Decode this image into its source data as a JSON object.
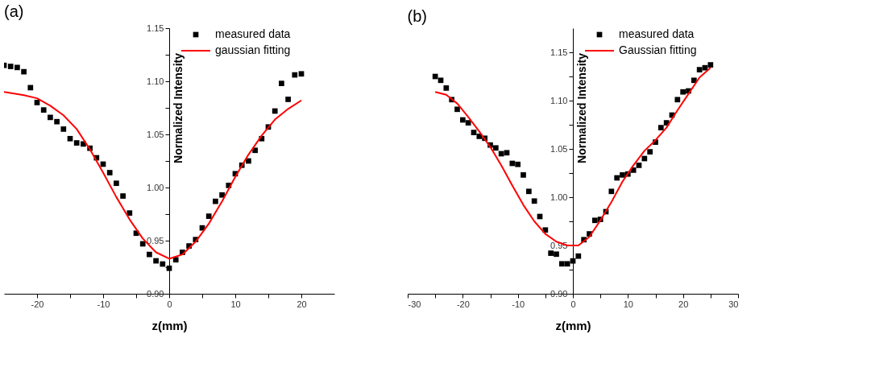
{
  "chart_data": [
    {
      "type": "scatter",
      "title": "(a)",
      "xlabel": "z(mm)",
      "ylabel": "Normalized Intensity",
      "xlim": [
        -25,
        25
      ],
      "ylim": [
        0.9,
        1.15
      ],
      "xticks": [
        -20,
        {
          "value": -15,
          "label": null
        },
        -10,
        {
          "value": -5,
          "label": null
        },
        0,
        {
          "value": 5,
          "label": null
        },
        10,
        {
          "value": 15,
          "label": null
        },
        20
      ],
      "yticks": [
        {
          "value": 0.9,
          "label": "0.90"
        },
        {
          "value": 0.925,
          "label": null
        },
        {
          "value": 0.95,
          "label": "0.95"
        },
        {
          "value": 0.975,
          "label": null
        },
        {
          "value": 1.0,
          "label": "1.00"
        },
        {
          "value": 1.025,
          "label": null
        },
        {
          "value": 1.05,
          "label": "1.05"
        },
        {
          "value": 1.075,
          "label": null
        },
        {
          "value": 1.1,
          "label": "1.10"
        },
        {
          "value": 1.125,
          "label": null
        },
        {
          "value": 1.15,
          "label": "1.15"
        }
      ],
      "grid": false,
      "legend": "top right",
      "series": [
        {
          "name": "measured data",
          "marker": "square",
          "color": "#000000",
          "x": [
            -25,
            -24,
            -23,
            -22,
            -21,
            -20,
            -19,
            -18,
            -17,
            -16,
            -15,
            -14,
            -13,
            -12,
            -11,
            -10,
            -9,
            -8,
            -7,
            -6,
            -5,
            -4,
            -3,
            -2,
            -1,
            0,
            1,
            2,
            3,
            4,
            5,
            6,
            7,
            8,
            9,
            10,
            11,
            12,
            13,
            14,
            15,
            16,
            17,
            18,
            19,
            20
          ],
          "values": [
            1.115,
            1.114,
            1.113,
            1.109,
            1.094,
            1.08,
            1.073,
            1.066,
            1.062,
            1.055,
            1.046,
            1.042,
            1.041,
            1.037,
            1.028,
            1.022,
            1.014,
            1.004,
            0.992,
            0.976,
            0.957,
            0.947,
            0.937,
            0.931,
            0.928,
            0.924,
            0.932,
            0.939,
            0.945,
            0.951,
            0.962,
            0.973,
            0.987,
            0.993,
            1.002,
            1.013,
            1.021,
            1.025,
            1.035,
            1.046,
            1.057,
            1.072,
            1.098,
            1.083,
            1.106,
            1.107
          ]
        },
        {
          "name": "gaussian fitting",
          "type": "line",
          "line_style": "solid",
          "color": "#ff0000",
          "x": [
            -25,
            -22,
            -20,
            -18,
            -16,
            -14,
            -12,
            -10,
            -8,
            -6,
            -4,
            -2,
            0,
            2,
            4,
            6,
            8,
            10,
            12,
            14,
            16,
            18,
            20
          ],
          "values": [
            1.09,
            1.087,
            1.084,
            1.077,
            1.068,
            1.055,
            1.036,
            1.014,
            0.991,
            0.97,
            0.952,
            0.939,
            0.933,
            0.937,
            0.949,
            0.966,
            0.987,
            1.01,
            1.031,
            1.049,
            1.064,
            1.074,
            1.082
          ]
        }
      ]
    },
    {
      "type": "scatter",
      "title": "(b)",
      "xlabel": "z(mm)",
      "ylabel": "Normalized Intensity",
      "xlim": [
        -30,
        30
      ],
      "ylim": [
        0.9,
        1.175
      ],
      "xticks": [
        -30,
        {
          "value": -25,
          "label": null
        },
        -20,
        {
          "value": -15,
          "label": null
        },
        -10,
        {
          "value": -5,
          "label": null
        },
        0,
        {
          "value": 5,
          "label": null
        },
        10,
        {
          "value": 15,
          "label": null
        },
        20,
        {
          "value": 25,
          "label": null
        },
        30
      ],
      "yticks": [
        {
          "value": 0.9,
          "label": "0.90"
        },
        {
          "value": 0.925,
          "label": null
        },
        {
          "value": 0.95,
          "label": "0.95"
        },
        {
          "value": 0.975,
          "label": null
        },
        {
          "value": 1.0,
          "label": "1.00"
        },
        {
          "value": 1.025,
          "label": null
        },
        {
          "value": 1.05,
          "label": "1.05"
        },
        {
          "value": 1.075,
          "label": null
        },
        {
          "value": 1.1,
          "label": "1.10"
        },
        {
          "value": 1.125,
          "label": null
        },
        {
          "value": 1.15,
          "label": "1.15"
        }
      ],
      "grid": false,
      "legend": "top right",
      "series": [
        {
          "name": "measured data",
          "marker": "square",
          "color": "#000000",
          "x": [
            -25,
            -24,
            -23,
            -22,
            -21,
            -20,
            -19,
            -18,
            -17,
            -16,
            -15,
            -14,
            -13,
            -12,
            -11,
            -10,
            -9,
            -8,
            -7,
            -6,
            -5,
            -4,
            -3,
            -2,
            -1,
            0,
            1,
            2,
            3,
            4,
            5,
            6,
            7,
            8,
            9,
            10,
            11,
            12,
            13,
            14,
            15,
            16,
            17,
            18,
            19,
            20,
            21,
            22,
            23,
            24,
            25
          ],
          "values": [
            1.125,
            1.121,
            1.113,
            1.101,
            1.091,
            1.08,
            1.077,
            1.067,
            1.063,
            1.061,
            1.054,
            1.051,
            1.045,
            1.046,
            1.035,
            1.034,
            1.023,
            1.006,
            0.996,
            0.98,
            0.966,
            0.942,
            0.941,
            0.931,
            0.931,
            0.934,
            0.939,
            0.956,
            0.962,
            0.976,
            0.977,
            0.985,
            1.006,
            1.02,
            1.023,
            1.024,
            1.028,
            1.033,
            1.04,
            1.047,
            1.057,
            1.072,
            1.077,
            1.085,
            1.101,
            1.109,
            1.11,
            1.121,
            1.132,
            1.134,
            1.137
          ]
        },
        {
          "name": "Gaussian fitting",
          "type": "line",
          "line_style": "solid",
          "color": "#ff0000",
          "x": [
            -25,
            -23,
            -21,
            -19,
            -17,
            -15,
            -13,
            -11,
            -9,
            -7,
            -5,
            -3,
            -1,
            1,
            3,
            5,
            7,
            9,
            11,
            13,
            15,
            17,
            19,
            21,
            23,
            25
          ],
          "values": [
            1.109,
            1.106,
            1.097,
            1.083,
            1.068,
            1.052,
            1.033,
            1.012,
            0.992,
            0.975,
            0.962,
            0.954,
            0.95,
            0.95,
            0.959,
            0.976,
            0.995,
            1.016,
            1.033,
            1.048,
            1.059,
            1.072,
            1.09,
            1.107,
            1.124,
            1.134
          ]
        }
      ]
    }
  ]
}
